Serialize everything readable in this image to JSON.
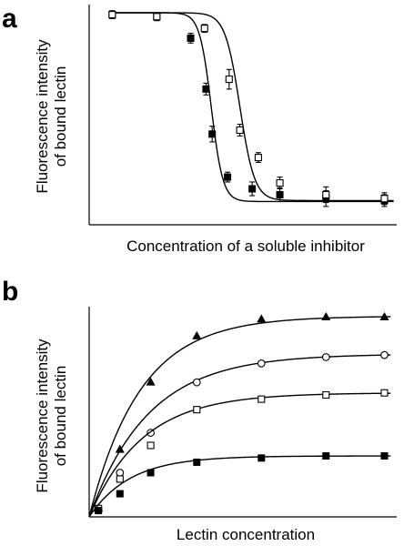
{
  "chart_data": [
    {
      "panel": "a",
      "type": "scatter",
      "title": "",
      "xlabel": "Concentration of a soluble inhibitor",
      "ylabel_lines": [
        "Fluorescence intensity",
        "of bound lectin"
      ],
      "xlim": [
        0,
        10
      ],
      "ylim": [
        0,
        1
      ],
      "grid": false,
      "series": [
        {
          "marker": "filled-square",
          "x": [
            0.75,
            2.2,
            3.3,
            3.8,
            4.0,
            4.5,
            5.3,
            6.2,
            7.7,
            9.6
          ],
          "y": [
            0.99,
            0.98,
            0.87,
            0.61,
            0.38,
            0.16,
            0.1,
            0.07,
            0.05,
            0.04
          ],
          "err": [
            0.02,
            0.02,
            0.025,
            0.03,
            0.04,
            0.025,
            0.035,
            0.035,
            0.04,
            0.03
          ],
          "fit": {
            "top": 1.0,
            "bottom": 0.035,
            "x50": 3.97,
            "slope": 0.19
          }
        },
        {
          "marker": "open-square",
          "x": [
            0.75,
            2.2,
            3.75,
            4.55,
            4.9,
            5.5,
            6.2,
            7.7,
            9.6
          ],
          "y": [
            0.99,
            0.98,
            0.92,
            0.66,
            0.4,
            0.26,
            0.13,
            0.07,
            0.05
          ],
          "err": [
            0.02,
            0.02,
            0.02,
            0.05,
            0.03,
            0.025,
            0.03,
            0.04,
            0.03
          ],
          "fit": {
            "top": 1.0,
            "bottom": 0.04,
            "x50": 4.9,
            "slope": 0.24
          }
        }
      ]
    },
    {
      "panel": "b",
      "type": "scatter",
      "title": "",
      "xlabel": "Lectin concentration",
      "ylabel_lines": [
        "Fluorescence intensity",
        "of bound lectin"
      ],
      "xlim": [
        0,
        10
      ],
      "ylim": [
        0,
        1
      ],
      "grid": false,
      "series": [
        {
          "marker": "filled-triangle",
          "x": [
            0.3,
            1.0,
            2.0,
            3.5,
            5.6,
            7.7,
            9.6
          ],
          "y": [
            0.04,
            0.32,
            0.64,
            0.86,
            0.94,
            0.95,
            0.95
          ],
          "fit": {
            "max": 0.955,
            "k": 0.6
          }
        },
        {
          "marker": "open-circle",
          "x": [
            0.3,
            1.0,
            2.0,
            3.5,
            5.6,
            7.7,
            9.6
          ],
          "y": [
            0.04,
            0.21,
            0.4,
            0.64,
            0.73,
            0.76,
            0.77
          ],
          "fit": {
            "max": 0.775,
            "k": 0.52
          }
        },
        {
          "marker": "open-square",
          "x": [
            0.3,
            1.0,
            2.0,
            3.5,
            5.6,
            7.7,
            9.6
          ],
          "y": [
            0.04,
            0.18,
            0.34,
            0.51,
            0.56,
            0.58,
            0.59
          ],
          "fit": {
            "max": 0.59,
            "k": 0.58
          }
        },
        {
          "marker": "filled-square",
          "x": [
            0.3,
            1.0,
            2.0,
            3.5,
            5.6,
            7.7,
            9.6
          ],
          "y": [
            0.03,
            0.11,
            0.21,
            0.26,
            0.28,
            0.29,
            0.29
          ],
          "fit": {
            "max": 0.29,
            "k": 0.75
          }
        }
      ]
    }
  ],
  "panels": {
    "a": {
      "letter": "a",
      "xlabel": "Concentration of a soluble inhibitor",
      "ylabel_line1": "Fluorescence intensity",
      "ylabel_line2": "of bound lectin"
    },
    "b": {
      "letter": "b",
      "xlabel": "Lectin concentration",
      "ylabel_line1": "Fluorescence intensity",
      "ylabel_line2": "of bound lectin"
    }
  }
}
